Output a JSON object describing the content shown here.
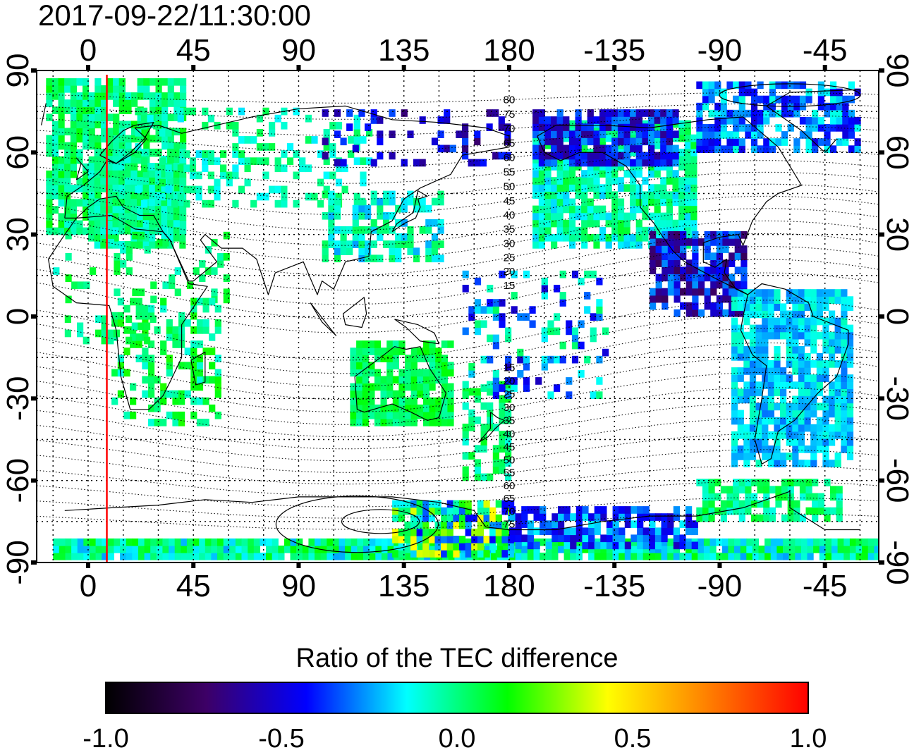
{
  "map": {
    "timestamp": "2017-09-22/11:30:00",
    "top_x_ticks": [
      "0",
      "45",
      "90",
      "135",
      "180",
      "-135",
      "-90",
      "-45"
    ],
    "bottom_x_ticks": [
      "0",
      "45",
      "90",
      "135",
      "180",
      "-135",
      "-90",
      "-45"
    ],
    "left_y_ticks": [
      "90",
      "60",
      "30",
      "0",
      "-30",
      "-60",
      "-90"
    ],
    "right_y_ticks": [
      "90",
      "60",
      "30",
      "0",
      "-30",
      "-60",
      "-90"
    ],
    "x_tick_longitudes": [
      0,
      45,
      90,
      135,
      180,
      225,
      270,
      315
    ],
    "y_tick_latitudes": [
      90,
      60,
      30,
      0,
      -30,
      -60,
      -90
    ],
    "x_range": [
      -22,
      338
    ],
    "y_range": [
      -90,
      90
    ],
    "grid": true,
    "terminator_longitude": 8,
    "magnetic_latitude_labels_north": [
      "80",
      "75",
      "70",
      "65",
      "60",
      "55",
      "50",
      "45",
      "40",
      "35",
      "30",
      "25",
      "20",
      "15"
    ],
    "magnetic_latitude_labels_south": [
      "15",
      "20",
      "25",
      "30",
      "35",
      "40",
      "45",
      "50",
      "55",
      "60",
      "65",
      "70",
      "75"
    ],
    "mag_label_longitude": 180
  },
  "colorbar": {
    "title": "Ratio of the TEC difference",
    "ticks": [
      "-1.0",
      "-0.5",
      "0.0",
      "0.5",
      "1.0"
    ],
    "tick_values": [
      -1.0,
      -0.5,
      0.0,
      0.5,
      1.0
    ],
    "range": [
      -1.0,
      1.0
    ],
    "stops": [
      "#000000",
      "#3d0066",
      "#0000ff",
      "#00ffff",
      "#00ff00",
      "#ffff00",
      "#ff7f00",
      "#ff0000"
    ]
  },
  "colors": {
    "terminator": "#ff0000",
    "frame": "#000000",
    "coast": "#000000"
  }
}
